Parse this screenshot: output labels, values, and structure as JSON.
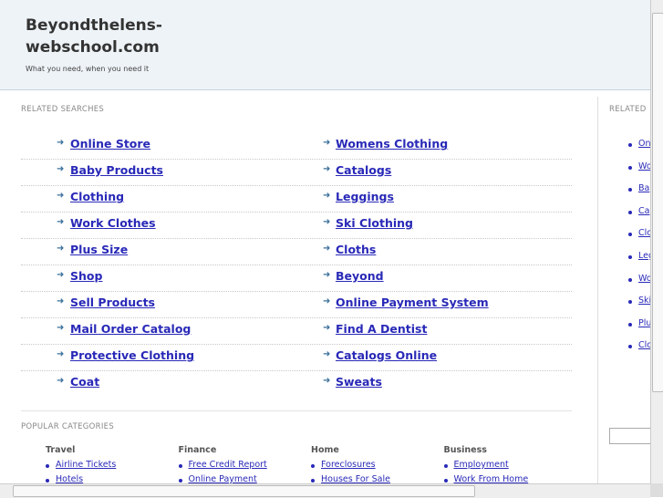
{
  "header": {
    "title": "Beyondthelens-webschool.com",
    "tagline": "What you need, when you need it"
  },
  "related": {
    "heading": "RELATED SEARCHES",
    "left": [
      "Online Store",
      "Baby Products",
      "Clothing",
      "Work Clothes",
      "Plus Size",
      "Shop",
      "Sell Products",
      "Mail Order Catalog",
      "Protective Clothing",
      "Coat"
    ],
    "right": [
      "Womens Clothing",
      "Catalogs",
      "Leggings",
      "Ski Clothing",
      "Cloths",
      "Beyond",
      "Online Payment System",
      "Find A Dentist",
      "Catalogs Online",
      "Sweats"
    ]
  },
  "sidebar": {
    "heading": "RELATED",
    "links": [
      "On",
      "Wo",
      "Ba",
      "Ca",
      "Clo",
      "Leg",
      "Wo",
      "Ski",
      "Plu",
      "Clo"
    ]
  },
  "popular": {
    "heading": "POPULAR CATEGORIES",
    "columns": [
      {
        "title": "Travel",
        "links": [
          "Airline Tickets",
          "Hotels"
        ]
      },
      {
        "title": "Finance",
        "links": [
          "Free Credit Report",
          "Online Payment"
        ]
      },
      {
        "title": "Home",
        "links": [
          "Foreclosures",
          "Houses For Sale"
        ]
      },
      {
        "title": "Business",
        "links": [
          "Employment",
          "Work From Home"
        ]
      }
    ]
  }
}
